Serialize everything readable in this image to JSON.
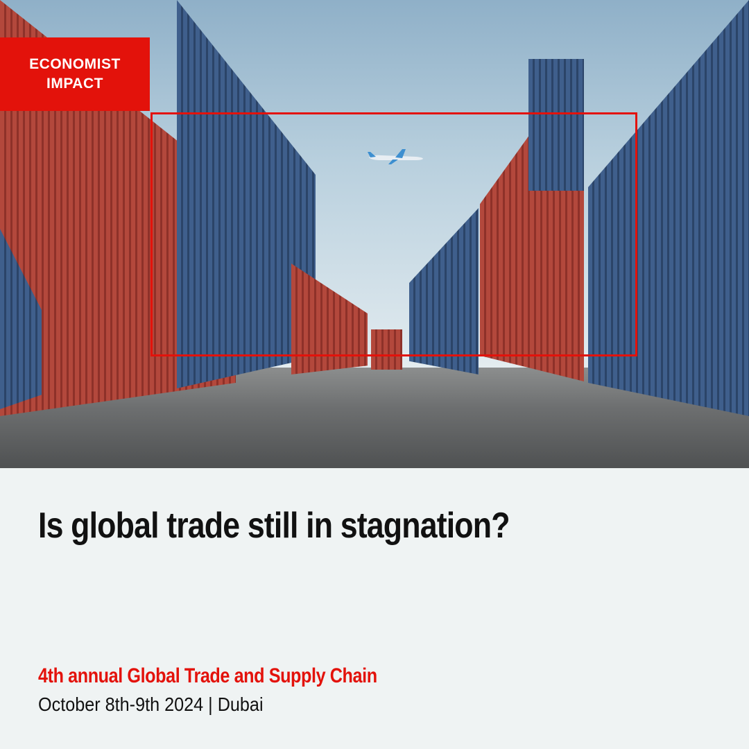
{
  "brand": {
    "line1": "ECONOMIST",
    "line2": "IMPACT",
    "color": "#e3120b"
  },
  "headline": "Is global trade still in stagnation?",
  "event": {
    "name": "4th annual Global Trade and Supply Chain",
    "date_location": "October 8th-9th 2024 | Dubai"
  },
  "image": {
    "subject": "shipping-containers-with-airplane",
    "icons": [
      "airplane-icon"
    ]
  }
}
